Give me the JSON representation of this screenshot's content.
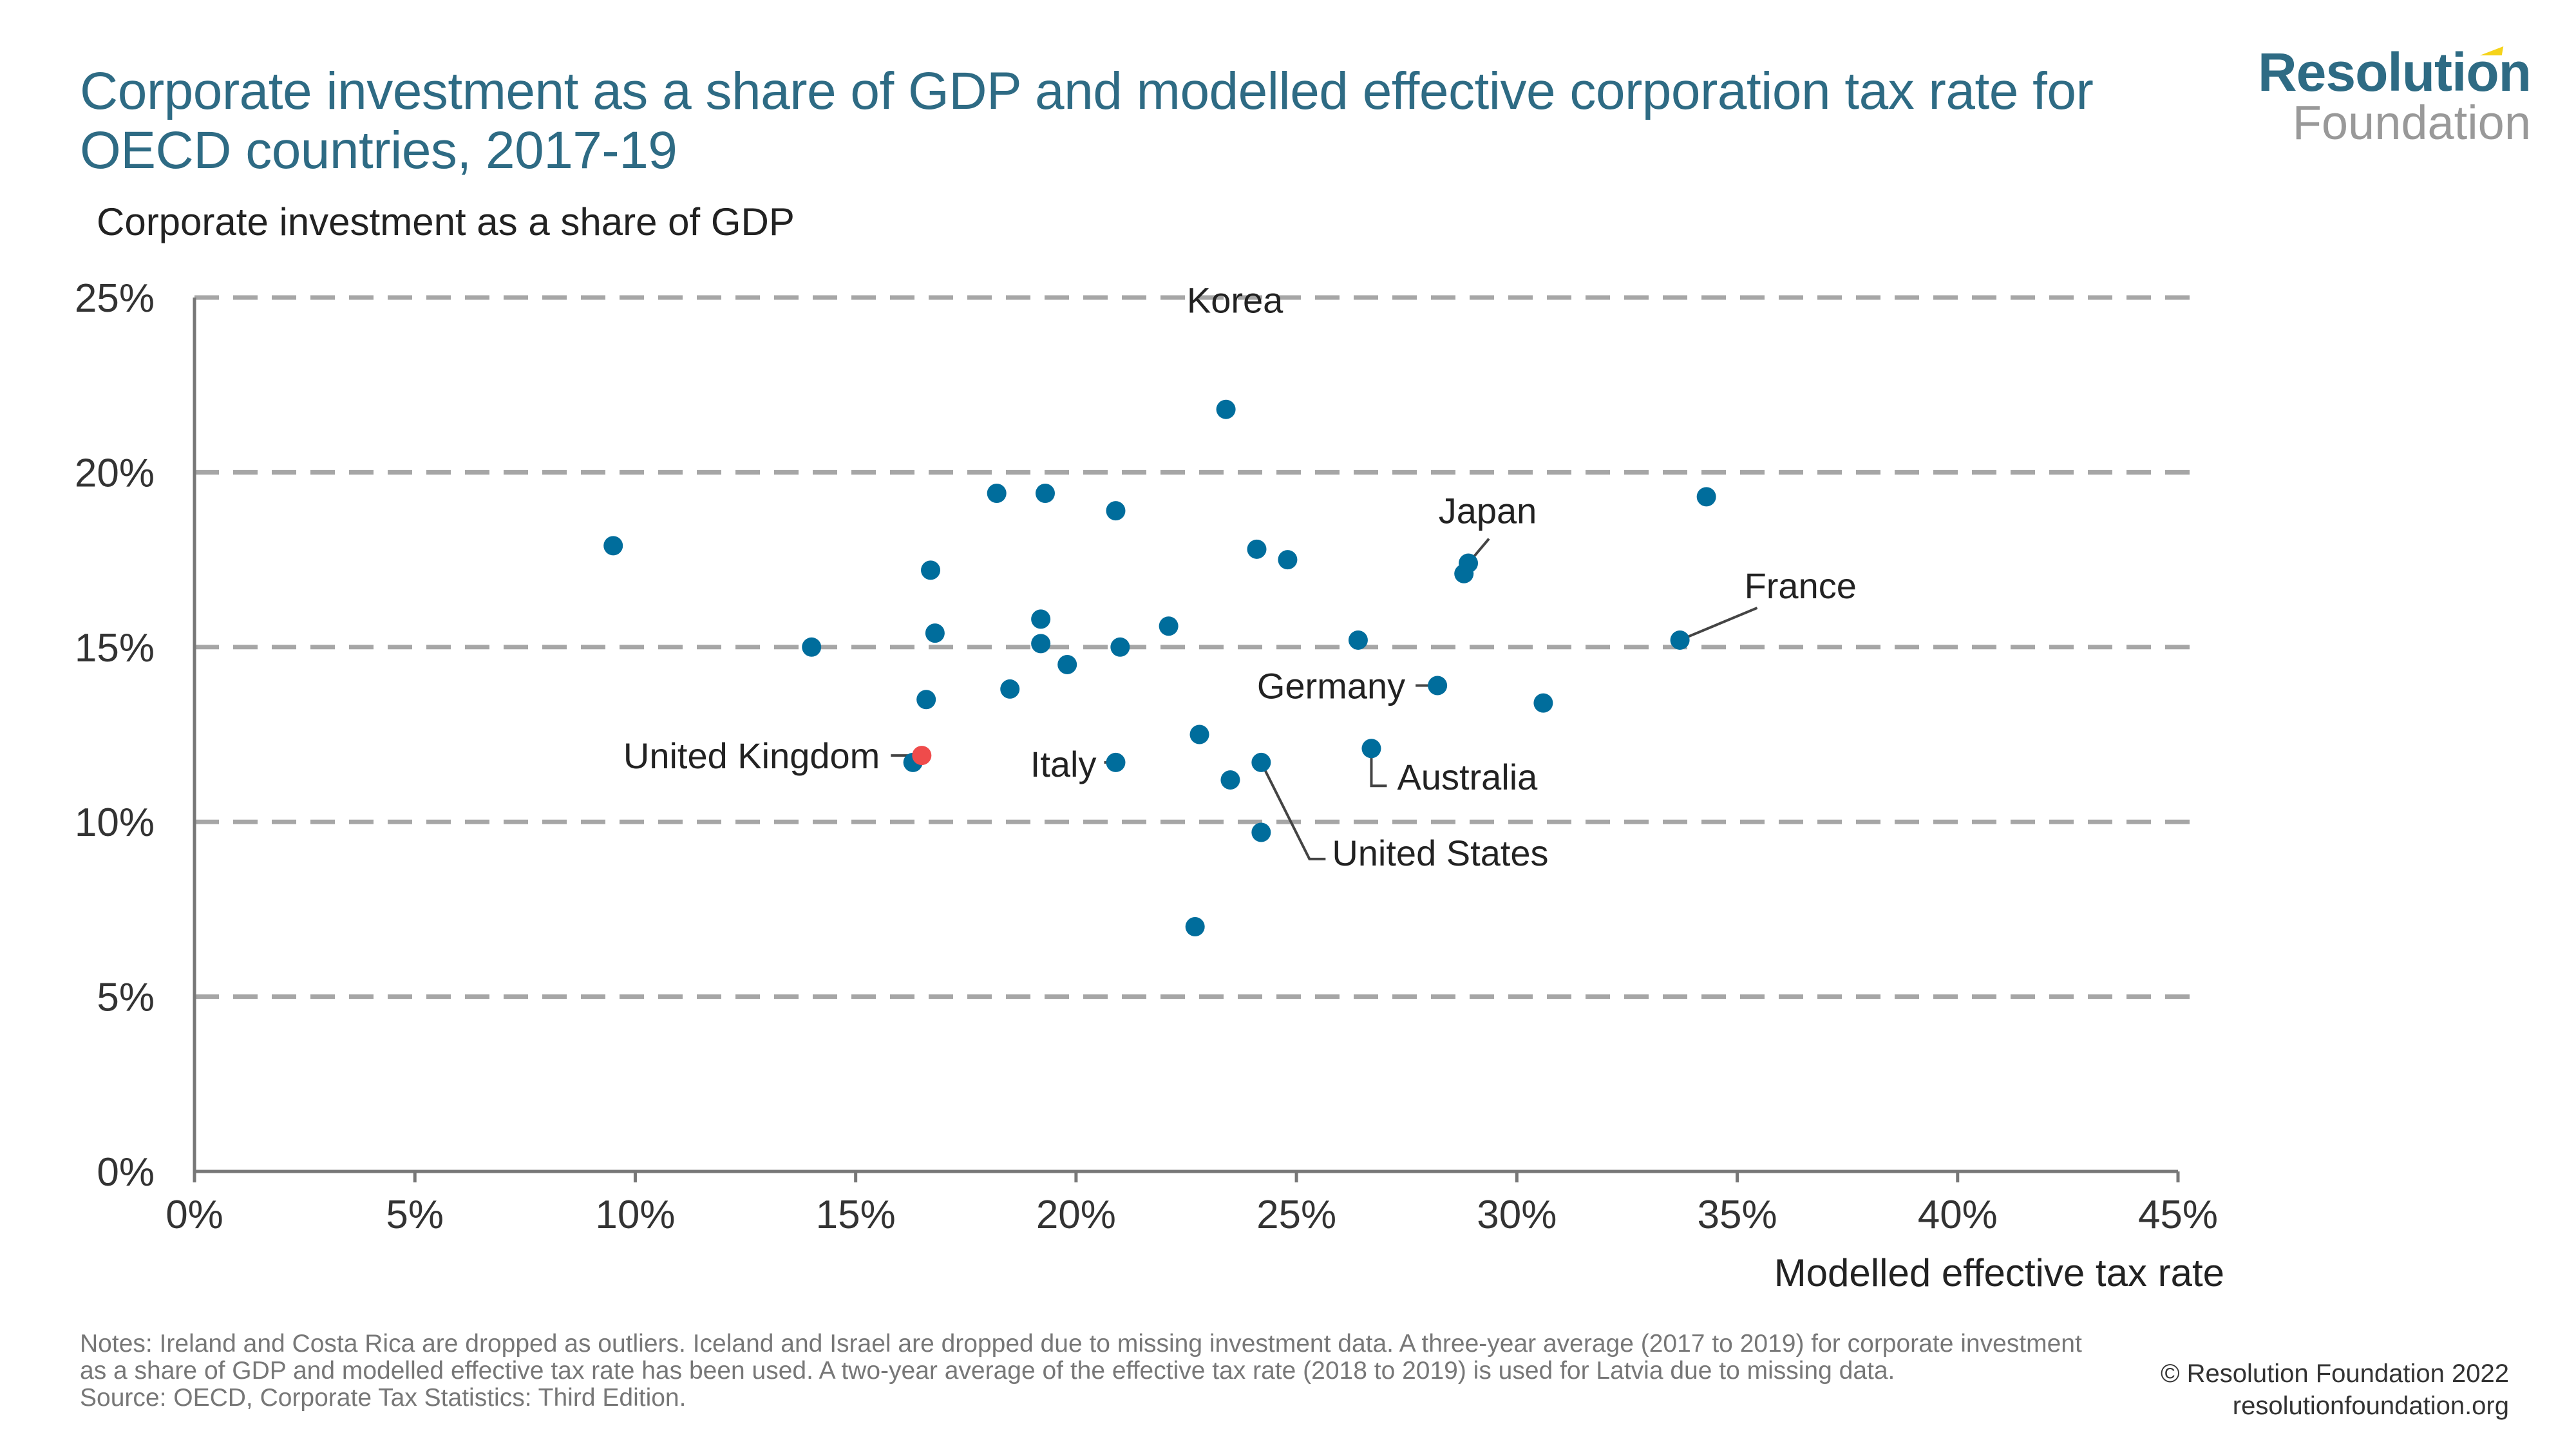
{
  "header": {
    "title": "Corporate investment as a share of GDP and modelled effective corporation tax rate for OECD countries, 2017-19",
    "logo_top": "Resolution",
    "logo_bottom": "Foundation"
  },
  "colors": {
    "title": "#2e6b84",
    "point": "#006d9c",
    "highlight": "#ef4b4b",
    "grid": "#a6a6a6",
    "axis": "#777777",
    "logo_accent": "#f5d31a"
  },
  "chart_data": {
    "type": "scatter",
    "title": "Corporate investment as a share of GDP and modelled effective corporation tax rate for OECD countries, 2017-19",
    "xlabel": "Modelled effective tax rate",
    "ylabel": "Corporate investment as a share of GDP",
    "xlim": [
      0,
      45
    ],
    "ylim": [
      0,
      25
    ],
    "x_ticks": [
      0,
      5,
      10,
      15,
      20,
      25,
      30,
      35,
      40,
      45
    ],
    "x_tick_labels": [
      "0%",
      "5%",
      "10%",
      "15%",
      "20%",
      "25%",
      "30%",
      "35%",
      "40%",
      "45%"
    ],
    "y_ticks": [
      0,
      5,
      10,
      15,
      20,
      25
    ],
    "y_tick_labels": [
      "0%",
      "5%",
      "10%",
      "15%",
      "20%",
      "25%"
    ],
    "grid": "horizontal dashed",
    "legend": "none",
    "points": [
      {
        "x": 9.5,
        "y": 17.9
      },
      {
        "x": 14.0,
        "y": 15.0
      },
      {
        "x": 16.7,
        "y": 17.2
      },
      {
        "x": 16.8,
        "y": 15.4
      },
      {
        "x": 16.6,
        "y": 13.5
      },
      {
        "x": 16.3,
        "y": 11.7
      },
      {
        "x": 18.2,
        "y": 19.4
      },
      {
        "x": 19.3,
        "y": 19.4
      },
      {
        "x": 19.2,
        "y": 15.8
      },
      {
        "x": 19.2,
        "y": 15.1
      },
      {
        "x": 18.5,
        "y": 13.8
      },
      {
        "x": 19.8,
        "y": 14.5
      },
      {
        "x": 20.9,
        "y": 18.9
      },
      {
        "x": 21.0,
        "y": 15.0
      },
      {
        "x": 20.9,
        "y": 11.7,
        "label": "Italy"
      },
      {
        "x": 22.1,
        "y": 15.6
      },
      {
        "x": 22.8,
        "y": 12.5
      },
      {
        "x": 22.7,
        "y": 7.0
      },
      {
        "x": 23.4,
        "y": 21.8,
        "label": "Korea"
      },
      {
        "x": 23.5,
        "y": 11.2
      },
      {
        "x": 24.1,
        "y": 17.8
      },
      {
        "x": 24.2,
        "y": 11.7,
        "label": "United States"
      },
      {
        "x": 24.2,
        "y": 9.7
      },
      {
        "x": 24.8,
        "y": 17.5
      },
      {
        "x": 26.4,
        "y": 15.2
      },
      {
        "x": 26.7,
        "y": 12.1,
        "label": "Australia"
      },
      {
        "x": 28.2,
        "y": 13.9,
        "label": "Germany"
      },
      {
        "x": 28.8,
        "y": 17.1
      },
      {
        "x": 28.9,
        "y": 17.4,
        "label": "Japan"
      },
      {
        "x": 30.6,
        "y": 13.4
      },
      {
        "x": 33.7,
        "y": 15.2,
        "label": "France"
      },
      {
        "x": 34.3,
        "y": 19.3
      },
      {
        "x": 16.5,
        "y": 11.9,
        "label": "United Kingdom",
        "highlight": true
      }
    ],
    "annotations": [
      {
        "text": "Korea",
        "target": "Korea"
      },
      {
        "text": "Japan",
        "target": "Japan"
      },
      {
        "text": "France",
        "target": "France"
      },
      {
        "text": "Germany",
        "target": "Germany"
      },
      {
        "text": "United Kingdom",
        "target": "United Kingdom"
      },
      {
        "text": "Italy",
        "target": "Italy"
      },
      {
        "text": "Australia",
        "target": "Australia"
      },
      {
        "text": "United States",
        "target": "United States"
      }
    ]
  },
  "footer": {
    "notes": "Notes: Ireland and Costa Rica are dropped as outliers. Iceland and Israel are dropped due to missing investment data. A three-year average (2017 to 2019) for corporate investment as a share of GDP and modelled effective tax rate has been used. A two-year average of the effective tax rate (2018 to 2019) is used for Latvia due to missing data.",
    "source": "Source: OECD, Corporate Tax Statistics: Third Edition.",
    "copyright": "© Resolution Foundation 2022",
    "website": "resolutionfoundation.org"
  }
}
